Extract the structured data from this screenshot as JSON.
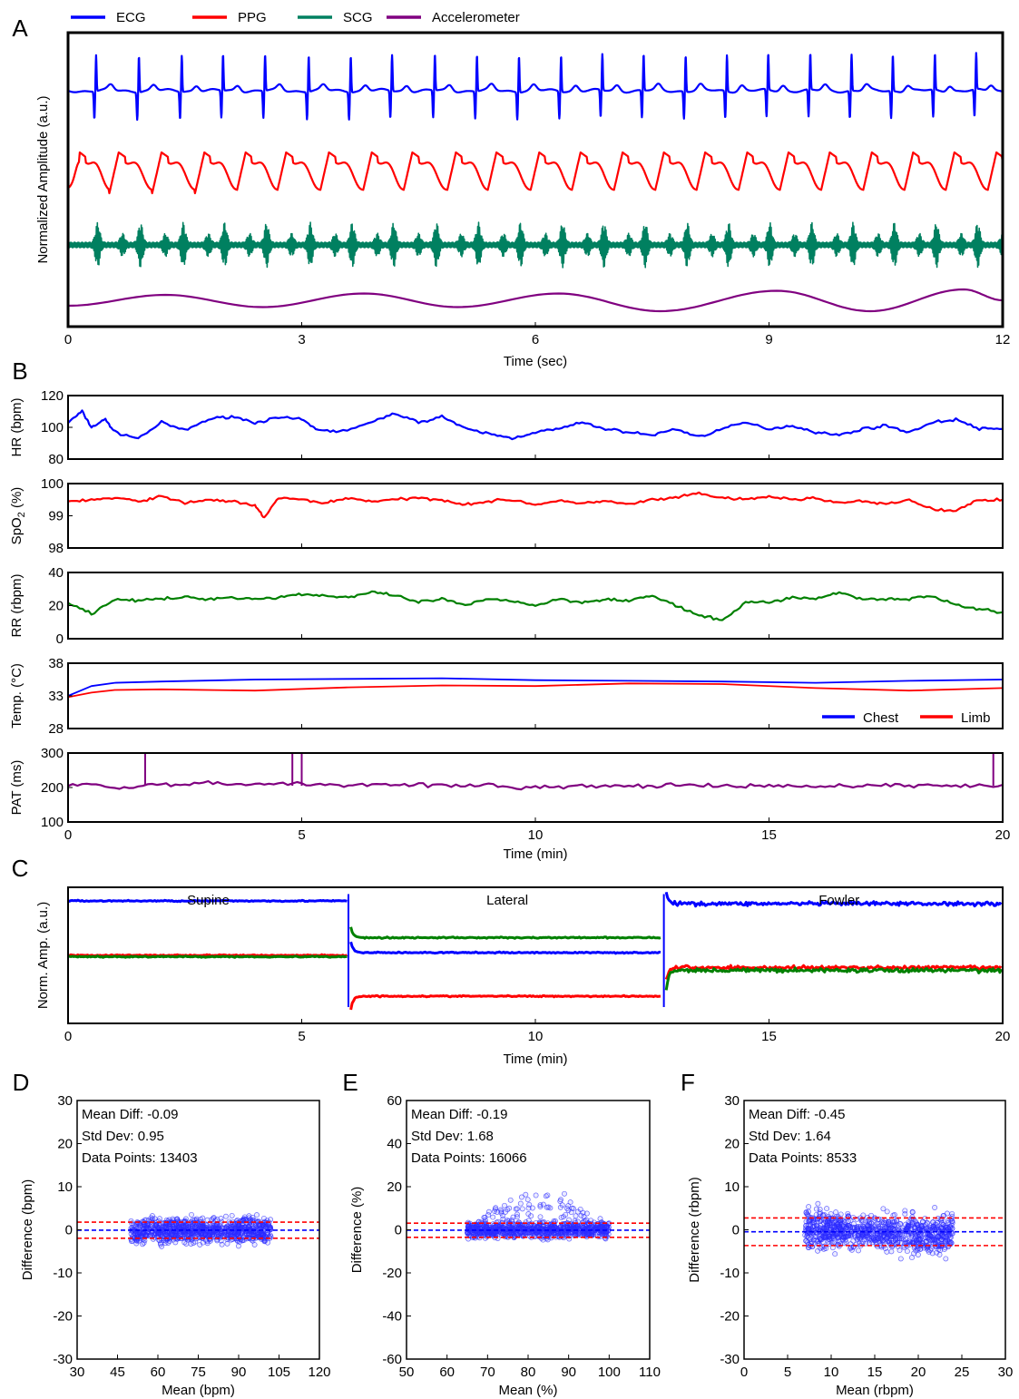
{
  "chart_data": [
    {
      "panel": "A",
      "type": "line",
      "xlabel": "Time (sec)",
      "ylabel": "Normalized Amplitude (a.u.)",
      "xlim": [
        0,
        12
      ],
      "xticks": [
        0,
        3,
        6,
        9,
        12
      ],
      "legend": {
        "placement": "top",
        "entries": [
          "ECG",
          "PPG",
          "SCG",
          "Accelerometer"
        ]
      },
      "series": [
        {
          "name": "ECG",
          "color": "#0000ff",
          "beats_x": [
            0.35,
            0.9,
            1.45,
            1.98,
            2.52,
            3.08,
            3.62,
            4.15,
            4.7,
            5.24,
            5.78,
            6.32,
            6.85,
            7.38,
            7.92,
            8.45,
            8.98,
            9.52,
            10.05,
            10.58,
            11.12,
            11.65
          ]
        },
        {
          "name": "PPG",
          "color": "#ff0000",
          "peaks_x": [
            0.15,
            0.65,
            1.2,
            1.75,
            2.28,
            2.8,
            3.35,
            3.9,
            4.42,
            4.98,
            5.5,
            6.05,
            6.58,
            7.12,
            7.65,
            8.18,
            8.72,
            9.25,
            9.78,
            10.32,
            10.85,
            11.38,
            11.92
          ]
        },
        {
          "name": "SCG",
          "color": "#008060",
          "bursts_x": [
            0.35,
            0.9,
            1.45,
            1.98,
            2.52,
            3.08,
            3.62,
            4.15,
            4.7,
            5.24,
            5.78,
            6.32,
            6.85,
            7.38,
            7.92,
            8.45,
            8.98,
            9.52,
            10.05,
            10.58,
            11.12,
            11.65
          ]
        },
        {
          "name": "Accelerometer",
          "color": "#800080",
          "x": [
            0,
            1.25,
            2.5,
            3.8,
            5.0,
            6.3,
            7.6,
            9.1,
            10.3,
            11.5,
            12
          ],
          "y": [
            0.2,
            0.6,
            0.15,
            0.65,
            0.15,
            0.65,
            0.0,
            0.75,
            0.0,
            0.8,
            0.4
          ]
        }
      ]
    },
    {
      "panel": "B",
      "type": "line",
      "xlabel": "Time (min)",
      "xlim": [
        0,
        20
      ],
      "xticks": [
        0,
        5,
        10,
        15,
        20
      ],
      "subplots": [
        {
          "ylabel": "HR (bpm)",
          "ylim": [
            80,
            120
          ],
          "yticks": [
            80,
            100,
            120
          ],
          "color": "#0000ff",
          "x": [
            0,
            0.3,
            0.5,
            0.8,
            1.0,
            1.5,
            2.0,
            2.5,
            3.0,
            3.5,
            4.0,
            4.5,
            5.0,
            5.3,
            5.8,
            6.5,
            7.0,
            7.5,
            8.0,
            8.5,
            9.0,
            9.5,
            10.0,
            10.5,
            11.0,
            11.5,
            12.0,
            12.5,
            13.0,
            13.5,
            14.0,
            14.5,
            15.0,
            15.5,
            16.0,
            16.5,
            17.0,
            17.5,
            18.0,
            18.5,
            19.0,
            19.5,
            20.0
          ],
          "y": [
            103,
            110,
            100,
            105,
            97,
            93,
            103,
            98,
            105,
            107,
            103,
            106,
            105,
            99,
            97,
            103,
            109,
            103,
            107,
            99,
            96,
            93,
            97,
            99,
            103,
            99,
            97,
            95,
            99,
            94,
            99,
            103,
            99,
            101,
            97,
            95,
            99,
            101,
            97,
            103,
            105,
            99,
            99
          ]
        },
        {
          "ylabel": "SpO2 (%)",
          "ylabel_main": "SpO",
          "ylabel_sub": "2",
          "ylabel_unit": " (%)",
          "ylim": [
            98,
            100
          ],
          "yticks": [
            98,
            99,
            100
          ],
          "color": "#ff0000",
          "x": [
            0,
            0.5,
            1.0,
            1.5,
            2.0,
            2.5,
            3.0,
            3.5,
            4.0,
            4.2,
            4.5,
            5.0,
            5.5,
            6.0,
            6.5,
            7.0,
            7.5,
            8.0,
            8.5,
            9.0,
            9.5,
            10.0,
            10.5,
            11.0,
            11.5,
            12.0,
            12.5,
            13.0,
            13.5,
            14.0,
            14.5,
            15.0,
            15.5,
            16.0,
            16.5,
            17.0,
            17.5,
            18.0,
            18.5,
            19.0,
            19.5,
            20.0
          ],
          "y": [
            99.45,
            99.5,
            99.55,
            99.45,
            99.6,
            99.4,
            99.5,
            99.45,
            99.3,
            98.95,
            99.55,
            99.5,
            99.4,
            99.55,
            99.45,
            99.5,
            99.55,
            99.5,
            99.35,
            99.45,
            99.5,
            99.35,
            99.45,
            99.4,
            99.45,
            99.35,
            99.5,
            99.55,
            99.7,
            99.55,
            99.5,
            99.6,
            99.5,
            99.55,
            99.4,
            99.45,
            99.35,
            99.5,
            99.2,
            99.15,
            99.5,
            99.5
          ]
        },
        {
          "ylabel": "RR (rbpm)",
          "ylim": [
            0,
            40
          ],
          "yticks": [
            0,
            20,
            40
          ],
          "color": "#008000",
          "x": [
            0,
            0.5,
            1.0,
            1.5,
            2.0,
            2.5,
            3.0,
            3.5,
            4.0,
            4.5,
            5.0,
            5.5,
            6.0,
            6.5,
            7.0,
            7.5,
            8.0,
            8.5,
            9.0,
            9.5,
            10.0,
            10.5,
            11.0,
            11.5,
            12.0,
            12.5,
            13.0,
            13.5,
            14.0,
            14.5,
            15.0,
            15.5,
            16.0,
            16.5,
            17.0,
            17.5,
            18.0,
            18.5,
            19.0,
            19.5,
            20.0
          ],
          "y": [
            22,
            15,
            24,
            23,
            24,
            25,
            24,
            25,
            24,
            25,
            27,
            26,
            25,
            28,
            26,
            22,
            24,
            20,
            24,
            23,
            20,
            24,
            22,
            24,
            23,
            26,
            20,
            14,
            11,
            22,
            22,
            25,
            24,
            28,
            24,
            24,
            24,
            26,
            20,
            18,
            16
          ]
        },
        {
          "ylabel": "Temp. (°C)",
          "ylim": [
            28,
            38
          ],
          "yticks": [
            28,
            33,
            38
          ],
          "legend": {
            "placement": "bottom-right",
            "entries": [
              "Chest",
              "Limb"
            ]
          },
          "series": [
            {
              "name": "Chest",
              "color": "#0000ff",
              "x": [
                0,
                0.5,
                1.0,
                2.0,
                4.0,
                6.0,
                8.0,
                10.0,
                12.0,
                14.0,
                16.0,
                18.0,
                20.0
              ],
              "y": [
                33.0,
                34.5,
                35.0,
                35.2,
                35.5,
                35.6,
                35.7,
                35.4,
                35.3,
                35.2,
                35.0,
                35.3,
                35.5
              ]
            },
            {
              "name": "Limb",
              "color": "#ff0000",
              "x": [
                0,
                0.5,
                1.0,
                2.0,
                4.0,
                6.0,
                8.0,
                10.0,
                12.0,
                14.0,
                16.0,
                18.0,
                20.0
              ],
              "y": [
                32.8,
                33.5,
                33.9,
                34.0,
                33.8,
                34.3,
                34.6,
                34.5,
                34.9,
                34.8,
                34.2,
                33.8,
                34.2
              ]
            }
          ]
        },
        {
          "ylabel": "PAT (ms)",
          "ylim": [
            100,
            300
          ],
          "yticks": [
            100,
            200,
            300
          ],
          "color": "#800080",
          "x": [
            0,
            0.5,
            1.0,
            1.5,
            2.0,
            2.5,
            3.0,
            3.5,
            4.0,
            4.5,
            5.0,
            5.5,
            6.0,
            6.5,
            7.0,
            7.5,
            8.0,
            8.5,
            9.0,
            9.5,
            10.0,
            10.5,
            11.0,
            11.5,
            12.0,
            12.5,
            13.0,
            13.5,
            14.0,
            14.5,
            15.0,
            15.5,
            16.0,
            16.5,
            17.0,
            17.5,
            18.0,
            18.5,
            19.0,
            19.5,
            20.0
          ],
          "y": [
            205,
            210,
            200,
            205,
            212,
            205,
            215,
            208,
            212,
            210,
            212,
            208,
            205,
            212,
            210,
            208,
            206,
            203,
            207,
            200,
            202,
            200,
            205,
            203,
            204,
            205,
            206,
            205,
            204,
            202,
            205,
            205,
            200,
            206,
            205,
            208,
            205,
            206,
            205,
            205,
            208
          ],
          "spikes_x": [
            1.65,
            4.8,
            5.0,
            19.8
          ]
        }
      ]
    },
    {
      "panel": "C",
      "type": "line",
      "xlabel": "Time (min)",
      "ylabel": "Norm. Amp. (a.u.)",
      "xlim": [
        0,
        20
      ],
      "xticks": [
        0,
        5,
        10,
        15,
        20
      ],
      "annotations": [
        {
          "text": "Supine",
          "x": 3.0
        },
        {
          "text": "Lateral",
          "x": 9.4
        },
        {
          "text": "Fowler",
          "x": 16.5
        }
      ],
      "series": [
        {
          "color": "#0000ff",
          "segments": [
            {
              "x": [
                0,
                6.0
              ],
              "y": 0.9
            },
            {
              "x": [
                6.05,
                12.7
              ],
              "y": 0.52
            },
            {
              "x": [
                12.8,
                20
              ],
              "y": 0.88
            }
          ]
        },
        {
          "color": "#ff0000",
          "segments": [
            {
              "x": [
                0,
                6.0
              ],
              "y": 0.5
            },
            {
              "x": [
                6.05,
                12.7
              ],
              "y": 0.2
            },
            {
              "x": [
                12.8,
                20
              ],
              "y": 0.41
            }
          ]
        },
        {
          "color": "#008000",
          "segments": [
            {
              "x": [
                0,
                6.0
              ],
              "y": 0.49
            },
            {
              "x": [
                6.05,
                12.7
              ],
              "y": 0.63
            },
            {
              "x": [
                12.8,
                20
              ],
              "y": 0.39
            }
          ]
        }
      ]
    },
    {
      "panel": "D",
      "type": "scatter",
      "xlabel": "Mean (bpm)",
      "ylabel": "Difference (bpm)",
      "xlim": [
        30,
        120
      ],
      "xticks": [
        30,
        45,
        60,
        75,
        90,
        105,
        120
      ],
      "ylim": [
        -30,
        30
      ],
      "yticks": [
        -30,
        -20,
        -10,
        0,
        10,
        20,
        30
      ],
      "stats": [
        "Mean Diff: -0.09",
        "Std Dev: 0.95",
        "Data Points: 13403"
      ],
      "mean_diff": -0.09,
      "loa": [
        1.77,
        -1.95
      ],
      "scatter_x_range": [
        50,
        102
      ],
      "scatter_spread": 2.5
    },
    {
      "panel": "E",
      "type": "scatter",
      "xlabel": "Mean (%)",
      "ylabel": "Difference (%)",
      "xlim": [
        50,
        110
      ],
      "xticks": [
        50,
        60,
        70,
        80,
        90,
        100,
        110
      ],
      "ylim": [
        -60,
        60
      ],
      "yticks": [
        -60,
        -40,
        -20,
        0,
        20,
        40,
        60
      ],
      "stats": [
        "Mean Diff: -0.19",
        "Std Dev: 1.68",
        "Data Points: 16066"
      ],
      "mean_diff": -0.19,
      "loa": [
        3.1,
        -3.48
      ],
      "scatter_x_range": [
        65,
        100
      ],
      "scatter_spread": 3
    },
    {
      "panel": "F",
      "type": "scatter",
      "xlabel": "Mean (rbpm)",
      "ylabel": "Difference (rbpm)",
      "xlim": [
        0,
        30
      ],
      "xticks": [
        0,
        5,
        10,
        15,
        20,
        25,
        30
      ],
      "ylim": [
        -30,
        30
      ],
      "yticks": [
        -30,
        -20,
        -10,
        0,
        10,
        20,
        30
      ],
      "stats": [
        "Mean Diff: -0.45",
        "Std Dev: 1.64",
        "Data Points: 8533"
      ],
      "mean_diff": -0.45,
      "loa": [
        2.76,
        -3.66
      ],
      "scatter_x_range": [
        7,
        24
      ],
      "scatter_spread": 3.5
    }
  ]
}
